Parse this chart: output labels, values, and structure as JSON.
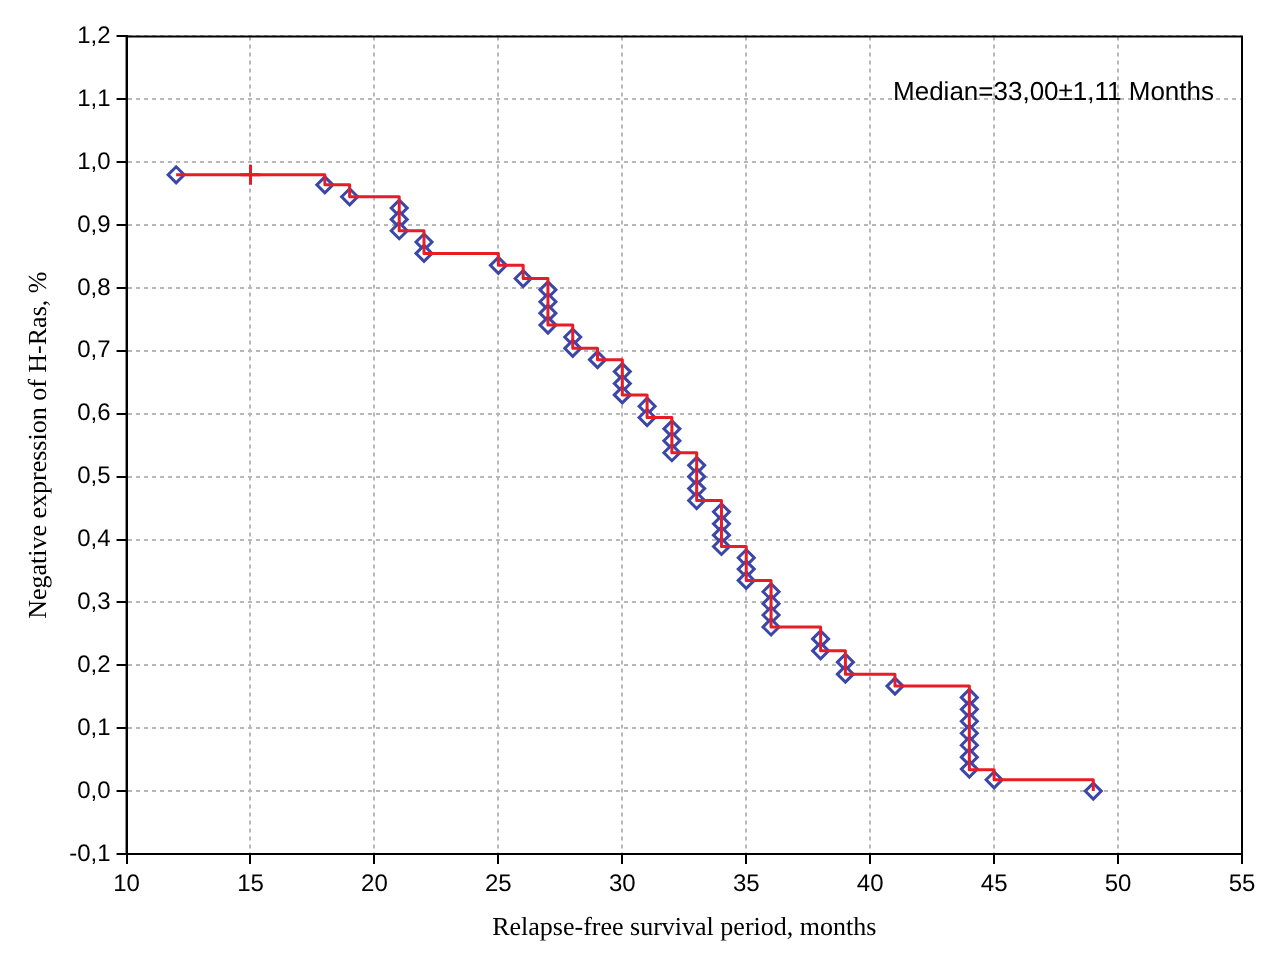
{
  "chart_data": {
    "type": "step",
    "xlabel": "Relapse-free survival period, months",
    "ylabel": "Negative expression of H-Ras, %",
    "annotations": [
      "Median=33,00±1,11 Months"
    ],
    "xlim": [
      10,
      55
    ],
    "xticks": [
      10,
      15,
      20,
      25,
      30,
      35,
      40,
      45,
      50,
      55
    ],
    "ylim": [
      -0.1,
      1.2
    ],
    "yticks": [
      {
        "value": -0.1,
        "label": "-0,1"
      },
      {
        "value": 0,
        "label": "0,0"
      },
      {
        "value": 0.1,
        "label": "0,1"
      },
      {
        "value": 0.2,
        "label": "0,2"
      },
      {
        "value": 0.3,
        "label": "0,3"
      },
      {
        "value": 0.4,
        "label": "0,4"
      },
      {
        "value": 0.5,
        "label": "0,5"
      },
      {
        "value": 0.6,
        "label": "0,6"
      },
      {
        "value": 0.7,
        "label": "0,7"
      },
      {
        "value": 0.8,
        "label": "0,8"
      },
      {
        "value": 0.9,
        "label": "0,9"
      },
      {
        "value": 1.0,
        "label": "1,0"
      },
      {
        "value": 1.1,
        "label": "1,1"
      },
      {
        "value": 1.2,
        "label": "1,2"
      }
    ],
    "grid": true,
    "legend": false,
    "series": [
      {
        "type": "step",
        "color": "#e81c24",
        "marker": "none",
        "x": [
          12,
          18,
          19,
          21,
          22,
          25,
          26,
          27,
          28,
          29,
          30,
          31,
          32,
          33,
          34,
          35,
          36,
          38,
          39,
          41,
          44,
          45,
          49
        ],
        "values": [
          0.98,
          0.964,
          0.945,
          0.891,
          0.855,
          0.836,
          0.815,
          0.741,
          0.704,
          0.686,
          0.63,
          0.594,
          0.538,
          0.462,
          0.389,
          0.335,
          0.261,
          0.223,
          0.186,
          0.167,
          0.034,
          0.018,
          0.0
        ]
      },
      {
        "type": "scatter",
        "color": "#3a46a8",
        "marker": "diamond",
        "x": [
          12,
          18,
          19,
          21,
          21,
          21,
          22,
          22,
          25,
          26,
          27,
          27,
          27,
          27,
          28,
          28,
          29,
          30,
          30,
          30,
          31,
          31,
          32,
          32,
          32,
          33,
          33,
          33,
          33,
          34,
          34,
          34,
          34,
          35,
          35,
          35,
          36,
          36,
          36,
          36,
          38,
          38,
          39,
          39,
          41,
          44,
          44,
          44,
          44,
          44,
          44,
          44,
          45,
          49
        ],
        "values": [
          0.98,
          0.964,
          0.945,
          0.927,
          0.909,
          0.891,
          0.873,
          0.855,
          0.836,
          0.815,
          0.797,
          0.778,
          0.76,
          0.741,
          0.722,
          0.704,
          0.686,
          0.667,
          0.648,
          0.63,
          0.612,
          0.594,
          0.576,
          0.557,
          0.538,
          0.518,
          0.5,
          0.481,
          0.462,
          0.444,
          0.425,
          0.407,
          0.389,
          0.371,
          0.353,
          0.335,
          0.317,
          0.298,
          0.28,
          0.261,
          0.242,
          0.223,
          0.205,
          0.186,
          0.167,
          0.149,
          0.13,
          0.111,
          0.092,
          0.073,
          0.054,
          0.035,
          0.018,
          0.0
        ]
      },
      {
        "type": "scatter",
        "color": "#e81c24",
        "marker": "cross",
        "x": [
          15
        ],
        "values": [
          0.98
        ]
      }
    ]
  }
}
